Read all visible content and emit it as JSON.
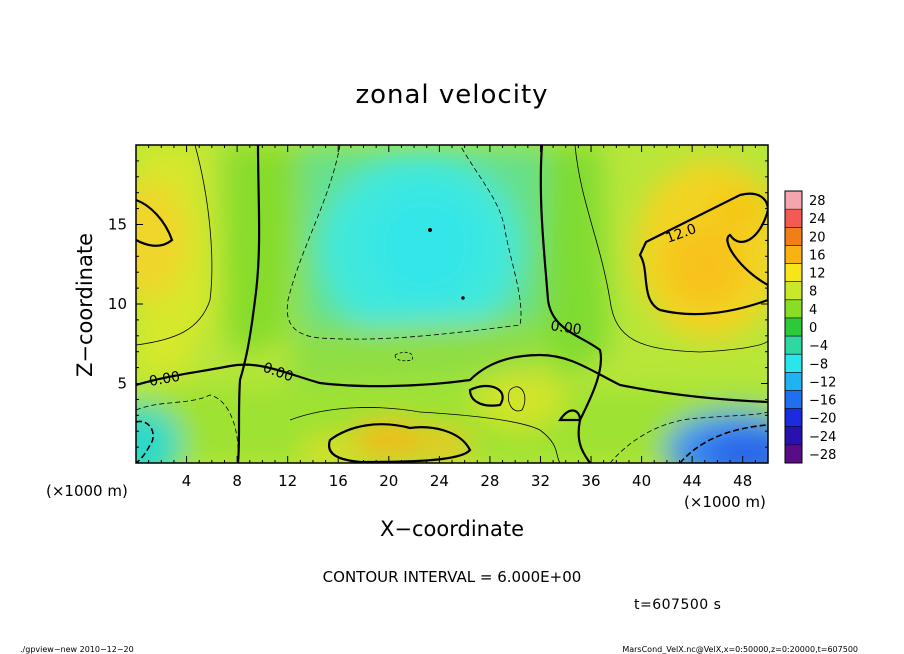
{
  "chart_data": {
    "type": "heatmap",
    "title": "zonal velocity",
    "xlabel": "X−coordinate",
    "ylabel": "Z−coordinate",
    "x_unit_left": "(×1000 m)",
    "x_unit_right": "(×1000 m)",
    "xlim": [
      0,
      50
    ],
    "ylim": [
      0,
      20
    ],
    "x_ticks": [
      "4",
      "8",
      "12",
      "16",
      "20",
      "24",
      "28",
      "32",
      "36",
      "40",
      "44",
      "48"
    ],
    "y_ticks": [
      "5",
      "10",
      "15"
    ],
    "colorbar": {
      "levels": [
        "28",
        "24",
        "20",
        "16",
        "12",
        "8",
        "4",
        "0",
        "−4",
        "−8",
        "−12",
        "−16",
        "−20",
        "−24",
        "−28"
      ],
      "colors": [
        "#f4a6ae",
        "#f25a52",
        "#f07f1a",
        "#f6b312",
        "#f7e51c",
        "#c8e82a",
        "#8bdc24",
        "#2cc93a",
        "#2fd8a2",
        "#28e6ea",
        "#1eb4f2",
        "#1f6ff0",
        "#1c2ae0",
        "#2a10b0",
        "#5a0c86"
      ]
    },
    "contour_labels": [
      "0.00",
      "0.00",
      "0.00",
      "12.0"
    ],
    "contour_interval_text": "CONTOUR INTERVAL = 6.000E+00",
    "time_text": "t=607500 s"
  },
  "footer": {
    "left": "./gpview−new   2010−12−20",
    "right": "MarsCond_VelX.nc@VelX,x=0:50000,z=0:20000,t=607500"
  }
}
